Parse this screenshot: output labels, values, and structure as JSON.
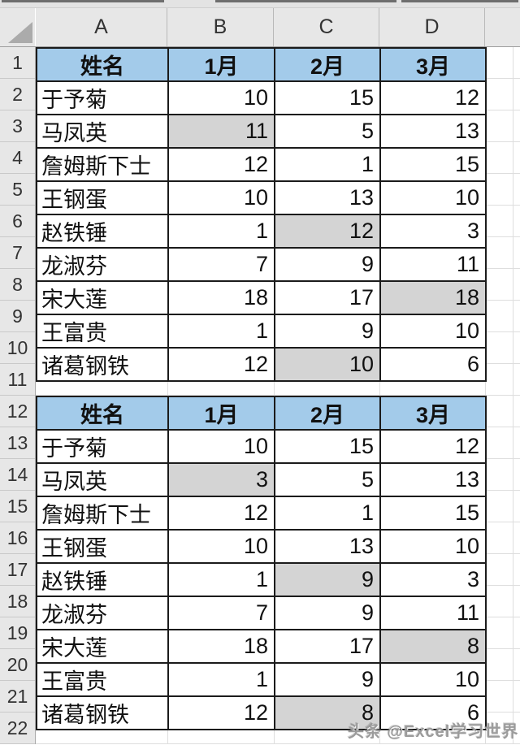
{
  "sheet": {
    "column_headers": [
      "A",
      "B",
      "C",
      "D"
    ],
    "row_numbers": [
      1,
      2,
      3,
      4,
      5,
      6,
      7,
      8,
      9,
      10,
      11,
      12,
      13,
      14,
      15,
      16,
      17,
      18,
      19,
      20,
      21,
      22
    ]
  },
  "tables": [
    {
      "header_row": 1,
      "headers": [
        "姓名",
        "1月",
        "2月",
        "3月"
      ],
      "rows": [
        {
          "name": "于予菊",
          "values": [
            10,
            15,
            12
          ],
          "highlight": -1
        },
        {
          "name": "马凤英",
          "values": [
            11,
            5,
            13
          ],
          "highlight": 0
        },
        {
          "name": "詹姆斯下士",
          "values": [
            12,
            1,
            15
          ],
          "highlight": -1
        },
        {
          "name": "王钢蛋",
          "values": [
            10,
            13,
            10
          ],
          "highlight": -1
        },
        {
          "name": "赵铁锤",
          "values": [
            1,
            12,
            3
          ],
          "highlight": 1
        },
        {
          "name": "龙淑芬",
          "values": [
            7,
            9,
            11
          ],
          "highlight": -1
        },
        {
          "name": "宋大莲",
          "values": [
            18,
            17,
            18
          ],
          "highlight": 2
        },
        {
          "name": "王富贵",
          "values": [
            1,
            9,
            10
          ],
          "highlight": -1
        },
        {
          "name": "诸葛钢铁",
          "values": [
            12,
            10,
            6
          ],
          "highlight": 1
        }
      ]
    },
    {
      "header_row": 12,
      "headers": [
        "姓名",
        "1月",
        "2月",
        "3月"
      ],
      "rows": [
        {
          "name": "于予菊",
          "values": [
            10,
            15,
            12
          ],
          "highlight": -1
        },
        {
          "name": "马凤英",
          "values": [
            3,
            5,
            13
          ],
          "highlight": 0
        },
        {
          "name": "詹姆斯下士",
          "values": [
            12,
            1,
            15
          ],
          "highlight": -1
        },
        {
          "name": "王钢蛋",
          "values": [
            10,
            13,
            10
          ],
          "highlight": -1
        },
        {
          "name": "赵铁锤",
          "values": [
            1,
            9,
            3
          ],
          "highlight": 1
        },
        {
          "name": "龙淑芬",
          "values": [
            7,
            9,
            11
          ],
          "highlight": -1
        },
        {
          "name": "宋大莲",
          "values": [
            18,
            17,
            8
          ],
          "highlight": 2
        },
        {
          "name": "王富贵",
          "values": [
            1,
            9,
            10
          ],
          "highlight": -1
        },
        {
          "name": "诸葛钢铁",
          "values": [
            12,
            8,
            6
          ],
          "highlight": 1
        }
      ]
    }
  ],
  "watermark": "头条 @Excel学习世界",
  "colors": {
    "header_fill": "#A3CBEA",
    "highlight_fill": "#D4D4D4",
    "table_border": "#1B1B1B",
    "panel_fill": "#E7E7E7",
    "watermark_text": "#9B9B9B"
  }
}
